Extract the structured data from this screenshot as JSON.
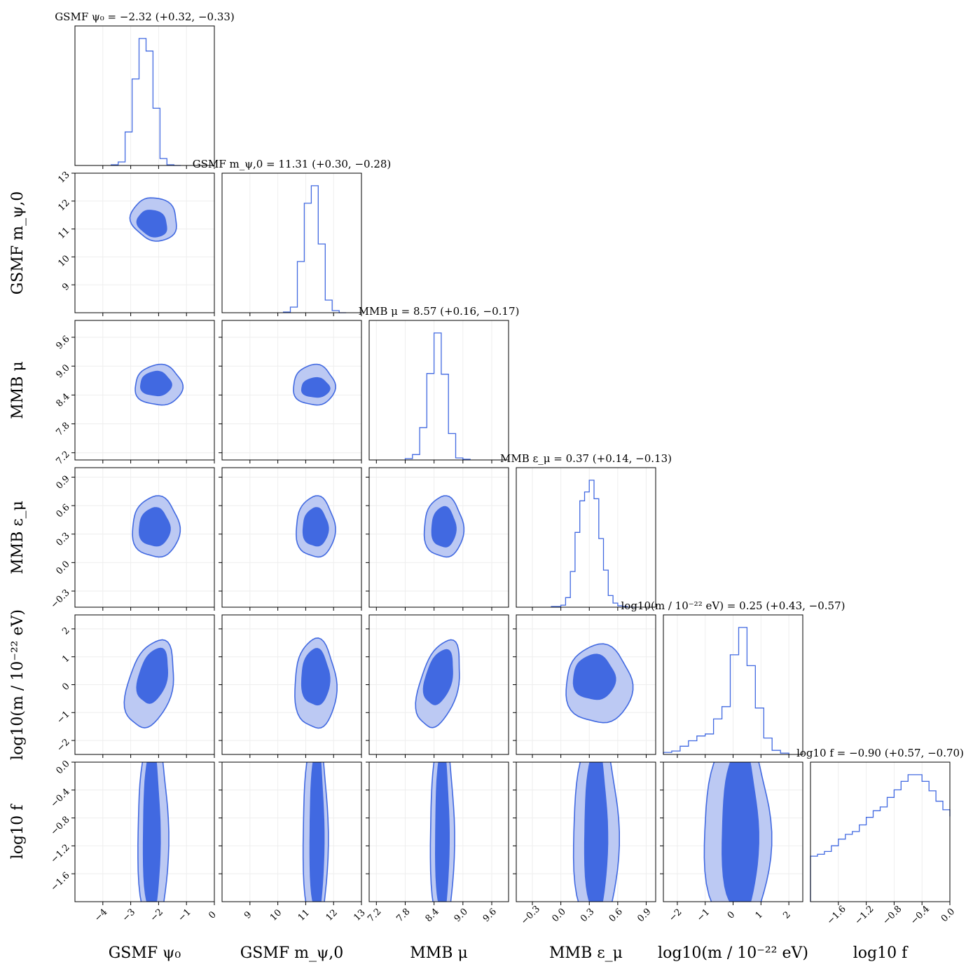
{
  "figure": {
    "type": "corner_plot",
    "fill_color_inner": "#4169e1",
    "fill_color_outer": "#bcc9f3",
    "line_color": "#4169e1",
    "grid": true
  },
  "parameters": [
    {
      "key": "psi0",
      "label": "GSMF ψ₀",
      "title": "GSMF ψ₀ = −2.32 (+0.32, −0.33)",
      "median": -2.32,
      "err_plus": 0.32,
      "err_minus": 0.33,
      "range": [
        -5.0,
        0.0
      ],
      "ticks": [
        -4,
        -3,
        -2,
        -1,
        0
      ],
      "tick_labels": [
        "−4",
        "−3",
        "−2",
        "−1",
        "0"
      ]
    },
    {
      "key": "mpsi0",
      "label": "GSMF m_ψ,0",
      "title": "GSMF m_ψ,0 = 11.31 (+0.30, −0.28)",
      "median": 11.31,
      "err_plus": 0.3,
      "err_minus": 0.28,
      "range": [
        8.0,
        13.0
      ],
      "ticks": [
        9,
        10,
        11,
        12,
        13
      ],
      "tick_labels": [
        "9",
        "10",
        "11",
        "12",
        "13"
      ]
    },
    {
      "key": "mu",
      "label": "MMB μ",
      "title": "MMB μ = 8.57 (+0.16, −0.17)",
      "median": 8.57,
      "err_plus": 0.16,
      "err_minus": 0.17,
      "range": [
        7.05,
        9.95
      ],
      "ticks": [
        7.2,
        7.8,
        8.4,
        9.0,
        9.6
      ],
      "tick_labels": [
        "7.2",
        "7.8",
        "8.4",
        "9.0",
        "9.6"
      ]
    },
    {
      "key": "eps",
      "label": "MMB ε_μ",
      "title": "MMB ε_μ = 0.37 (+0.14, −0.13)",
      "median": 0.37,
      "err_plus": 0.14,
      "err_minus": 0.13,
      "range": [
        -0.47,
        1.0
      ],
      "ticks": [
        -0.3,
        0.0,
        0.3,
        0.6,
        0.9
      ],
      "tick_labels": [
        "−0.3",
        "0.0",
        "0.3",
        "0.6",
        "0.9"
      ]
    },
    {
      "key": "logm",
      "label": "log10(m / 10⁻²² eV)",
      "title": "log10(m / 10⁻²² eV) = 0.25 (+0.43, −0.57)",
      "median": 0.25,
      "err_plus": 0.43,
      "err_minus": 0.57,
      "range": [
        -2.5,
        2.5
      ],
      "ticks": [
        -2,
        -1,
        0,
        1,
        2
      ],
      "tick_labels": [
        "−2",
        "−1",
        "0",
        "1",
        "2"
      ]
    },
    {
      "key": "logf",
      "label": "log10 f",
      "title": "log10 f = −0.90 (+0.57, −0.70)",
      "median": -0.9,
      "err_plus": 0.57,
      "err_minus": 0.7,
      "range": [
        -2.0,
        0.0
      ],
      "ticks": [
        -1.6,
        -1.2,
        -0.8,
        -0.4,
        0.0
      ],
      "tick_labels": [
        "−1.6",
        "−1.2",
        "−0.8",
        "−0.4",
        "0.0"
      ]
    }
  ],
  "chart_data": {
    "type": "corner",
    "histograms": [
      {
        "param": "psi0",
        "bins": [
          -3.7,
          -3.45,
          -3.2,
          -2.95,
          -2.7,
          -2.45,
          -2.2,
          -1.95,
          -1.7,
          -1.45,
          -1.2
        ],
        "counts": [
          1,
          5,
          48,
          124,
          182,
          164,
          82,
          10,
          1,
          0
        ]
      },
      {
        "param": "mpsi0",
        "bins": [
          10.2,
          10.45,
          10.7,
          10.95,
          11.2,
          11.45,
          11.7,
          11.95,
          12.2,
          12.45
        ],
        "counts": [
          1,
          8,
          73,
          156,
          181,
          98,
          18,
          3,
          0
        ]
      },
      {
        "param": "mu",
        "bins": [
          7.8,
          7.95,
          8.1,
          8.25,
          8.4,
          8.55,
          8.7,
          8.85,
          9.0,
          9.15
        ],
        "counts": [
          2,
          8,
          48,
          128,
          188,
          127,
          39,
          3,
          1
        ]
      },
      {
        "param": "eps",
        "bins": [
          -0.1,
          0.0,
          0.05,
          0.1,
          0.15,
          0.2,
          0.25,
          0.3,
          0.35,
          0.4,
          0.45,
          0.5,
          0.55,
          0.6,
          0.65,
          0.7,
          0.75,
          0.8
        ],
        "counts": [
          1,
          3,
          14,
          52,
          109,
          155,
          168,
          185,
          158,
          100,
          54,
          17,
          6,
          2,
          1,
          0,
          0
        ]
      },
      {
        "param": "logm",
        "bins": [
          -2.5,
          -2.2,
          -1.9,
          -1.6,
          -1.3,
          -1.0,
          -0.7,
          -0.4,
          -0.1,
          0.2,
          0.5,
          0.8,
          1.1,
          1.4,
          1.7,
          2.0
        ],
        "counts": [
          3,
          5,
          12,
          20,
          27,
          30,
          52,
          70,
          146,
          186,
          130,
          68,
          24,
          6,
          2
        ]
      },
      {
        "param": "logf",
        "bins": [
          -2.0,
          -1.9,
          -1.8,
          -1.7,
          -1.6,
          -1.5,
          -1.4,
          -1.3,
          -1.2,
          -1.1,
          -1.0,
          -0.9,
          -0.8,
          -0.7,
          -0.6,
          -0.5,
          -0.4,
          -0.3,
          -0.2,
          -0.1,
          0.0
        ],
        "counts": [
          48,
          50,
          53,
          59,
          66,
          71,
          74,
          81,
          89,
          96,
          100,
          110,
          118,
          127,
          134,
          134,
          127,
          117,
          106,
          97,
          90
        ]
      }
    ],
    "contours_2d": [
      {
        "x": "psi0",
        "y": "mpsi0",
        "inner": {
          "cx": -2.22,
          "cy": 11.2,
          "rx": 0.55,
          "ry": 0.45,
          "rot": 30
        },
        "outer": {
          "cx": -2.15,
          "cy": 11.35,
          "rx": 0.85,
          "ry": 0.75,
          "rot": 30
        }
      },
      {
        "x": "psi0",
        "y": "mu",
        "inner": {
          "cx": -2.1,
          "cy": 8.63,
          "rx": 0.55,
          "ry": 0.25
        },
        "outer": {
          "cx": -2.0,
          "cy": 8.6,
          "rx": 0.85,
          "ry": 0.42
        }
      },
      {
        "x": "mpsi0",
        "y": "mu",
        "inner": {
          "cx": 11.35,
          "cy": 8.55,
          "rx": 0.5,
          "ry": 0.2
        },
        "outer": {
          "cx": 11.3,
          "cy": 8.6,
          "rx": 0.75,
          "ry": 0.42
        }
      },
      {
        "x": "psi0",
        "y": "eps",
        "inner": {
          "cx": -2.15,
          "cy": 0.37,
          "rx": 0.55,
          "ry": 0.2
        },
        "outer": {
          "cx": -2.1,
          "cy": 0.37,
          "rx": 0.85,
          "ry": 0.32
        }
      },
      {
        "x": "mpsi0",
        "y": "eps",
        "inner": {
          "cx": 11.35,
          "cy": 0.37,
          "rx": 0.45,
          "ry": 0.2
        },
        "outer": {
          "cx": 11.35,
          "cy": 0.37,
          "rx": 0.7,
          "ry": 0.32
        }
      },
      {
        "x": "mu",
        "y": "eps",
        "inner": {
          "cx": 8.6,
          "cy": 0.37,
          "rx": 0.25,
          "ry": 0.21
        },
        "outer": {
          "cx": 8.6,
          "cy": 0.37,
          "rx": 0.41,
          "ry": 0.32
        }
      },
      {
        "x": "psi0",
        "y": "logm",
        "inner": {
          "cx": -2.2,
          "cy": 0.3,
          "rx": 0.5,
          "ry": 1.0,
          "rot": 15
        },
        "outer": {
          "cx": -2.3,
          "cy": 0.0,
          "rx": 0.8,
          "ry": 1.6,
          "rot": 15
        }
      },
      {
        "x": "mpsi0",
        "y": "logm",
        "inner": {
          "cx": 11.35,
          "cy": 0.25,
          "rx": 0.5,
          "ry": 1.0
        },
        "outer": {
          "cx": 11.35,
          "cy": 0.0,
          "rx": 0.75,
          "ry": 1.6
        }
      },
      {
        "x": "mu",
        "y": "logm",
        "inner": {
          "cx": 8.5,
          "cy": 0.25,
          "rx": 0.27,
          "ry": 1.0,
          "rot": 15
        },
        "outer": {
          "cx": 8.5,
          "cy": 0.0,
          "rx": 0.4,
          "ry": 1.6,
          "rot": 15
        }
      },
      {
        "x": "eps",
        "y": "logm",
        "inner": {
          "cx": 0.35,
          "cy": 0.25,
          "rx": 0.22,
          "ry": 0.8
        },
        "outer": {
          "cx": 0.4,
          "cy": 0.0,
          "rx": 0.35,
          "ry": 1.4
        }
      },
      {
        "x": "psi0",
        "y": "logf",
        "inner": {
          "cx": -2.25,
          "cy": -1.0,
          "rx": 0.3,
          "ry": 1.2
        },
        "outer": {
          "cx": -2.2,
          "cy": -1.0,
          "rx": 0.55,
          "ry": 1.4
        }
      },
      {
        "x": "mpsi0",
        "y": "logf",
        "inner": {
          "cx": 11.4,
          "cy": -1.0,
          "rx": 0.25,
          "ry": 1.2
        },
        "outer": {
          "cx": 11.35,
          "cy": -1.0,
          "rx": 0.45,
          "ry": 1.4
        }
      },
      {
        "x": "mu",
        "y": "logf",
        "inner": {
          "cx": 8.57,
          "cy": -1.0,
          "rx": 0.14,
          "ry": 1.2
        },
        "outer": {
          "cx": 8.57,
          "cy": -1.0,
          "rx": 0.25,
          "ry": 1.4
        }
      },
      {
        "x": "eps",
        "y": "logf",
        "inner": {
          "cx": 0.37,
          "cy": -1.0,
          "rx": 0.12,
          "ry": 1.2
        },
        "outer": {
          "cx": 0.37,
          "cy": -1.0,
          "rx": 0.24,
          "ry": 1.4
        }
      },
      {
        "x": "logm",
        "y": "logf",
        "inner": {
          "cx": 0.25,
          "cy": -1.0,
          "rx": 0.65,
          "ry": 1.2
        },
        "outer": {
          "cx": 0.15,
          "cy": -1.0,
          "rx": 1.2,
          "ry": 1.4
        }
      }
    ]
  }
}
